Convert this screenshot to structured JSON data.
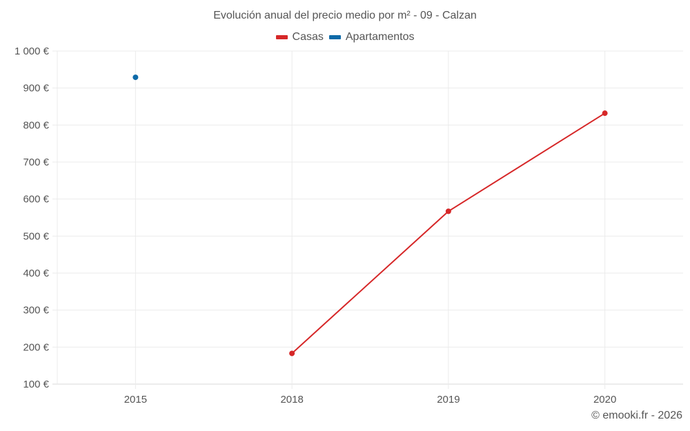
{
  "chart": {
    "title": "Evolución anual del precio medio por m² - 09 - Calzan",
    "credit": "© emooki.fr - 2026",
    "legend": [
      {
        "label": "Casas",
        "color": "#d62728"
      },
      {
        "label": "Apartamentos",
        "color": "#0e6aa8"
      }
    ]
  },
  "chart_data": {
    "type": "line",
    "title": "Evolución anual del precio medio por m² - 09 - Calzan",
    "xlabel": "",
    "ylabel": "",
    "categories": [
      "2015",
      "2018",
      "2019",
      "2020"
    ],
    "series": [
      {
        "name": "Casas",
        "color": "#d62728",
        "values": [
          null,
          183,
          567,
          832
        ]
      },
      {
        "name": "Apartamentos",
        "color": "#0e6aa8",
        "values": [
          929,
          null,
          null,
          null
        ]
      }
    ],
    "y_ticks": [
      "100 €",
      "200 €",
      "300 €",
      "400 €",
      "500 €",
      "600 €",
      "700 €",
      "800 €",
      "900 €",
      "1 000 €"
    ],
    "ylim": [
      100,
      1000
    ],
    "grid": true,
    "legend_position": "top"
  }
}
